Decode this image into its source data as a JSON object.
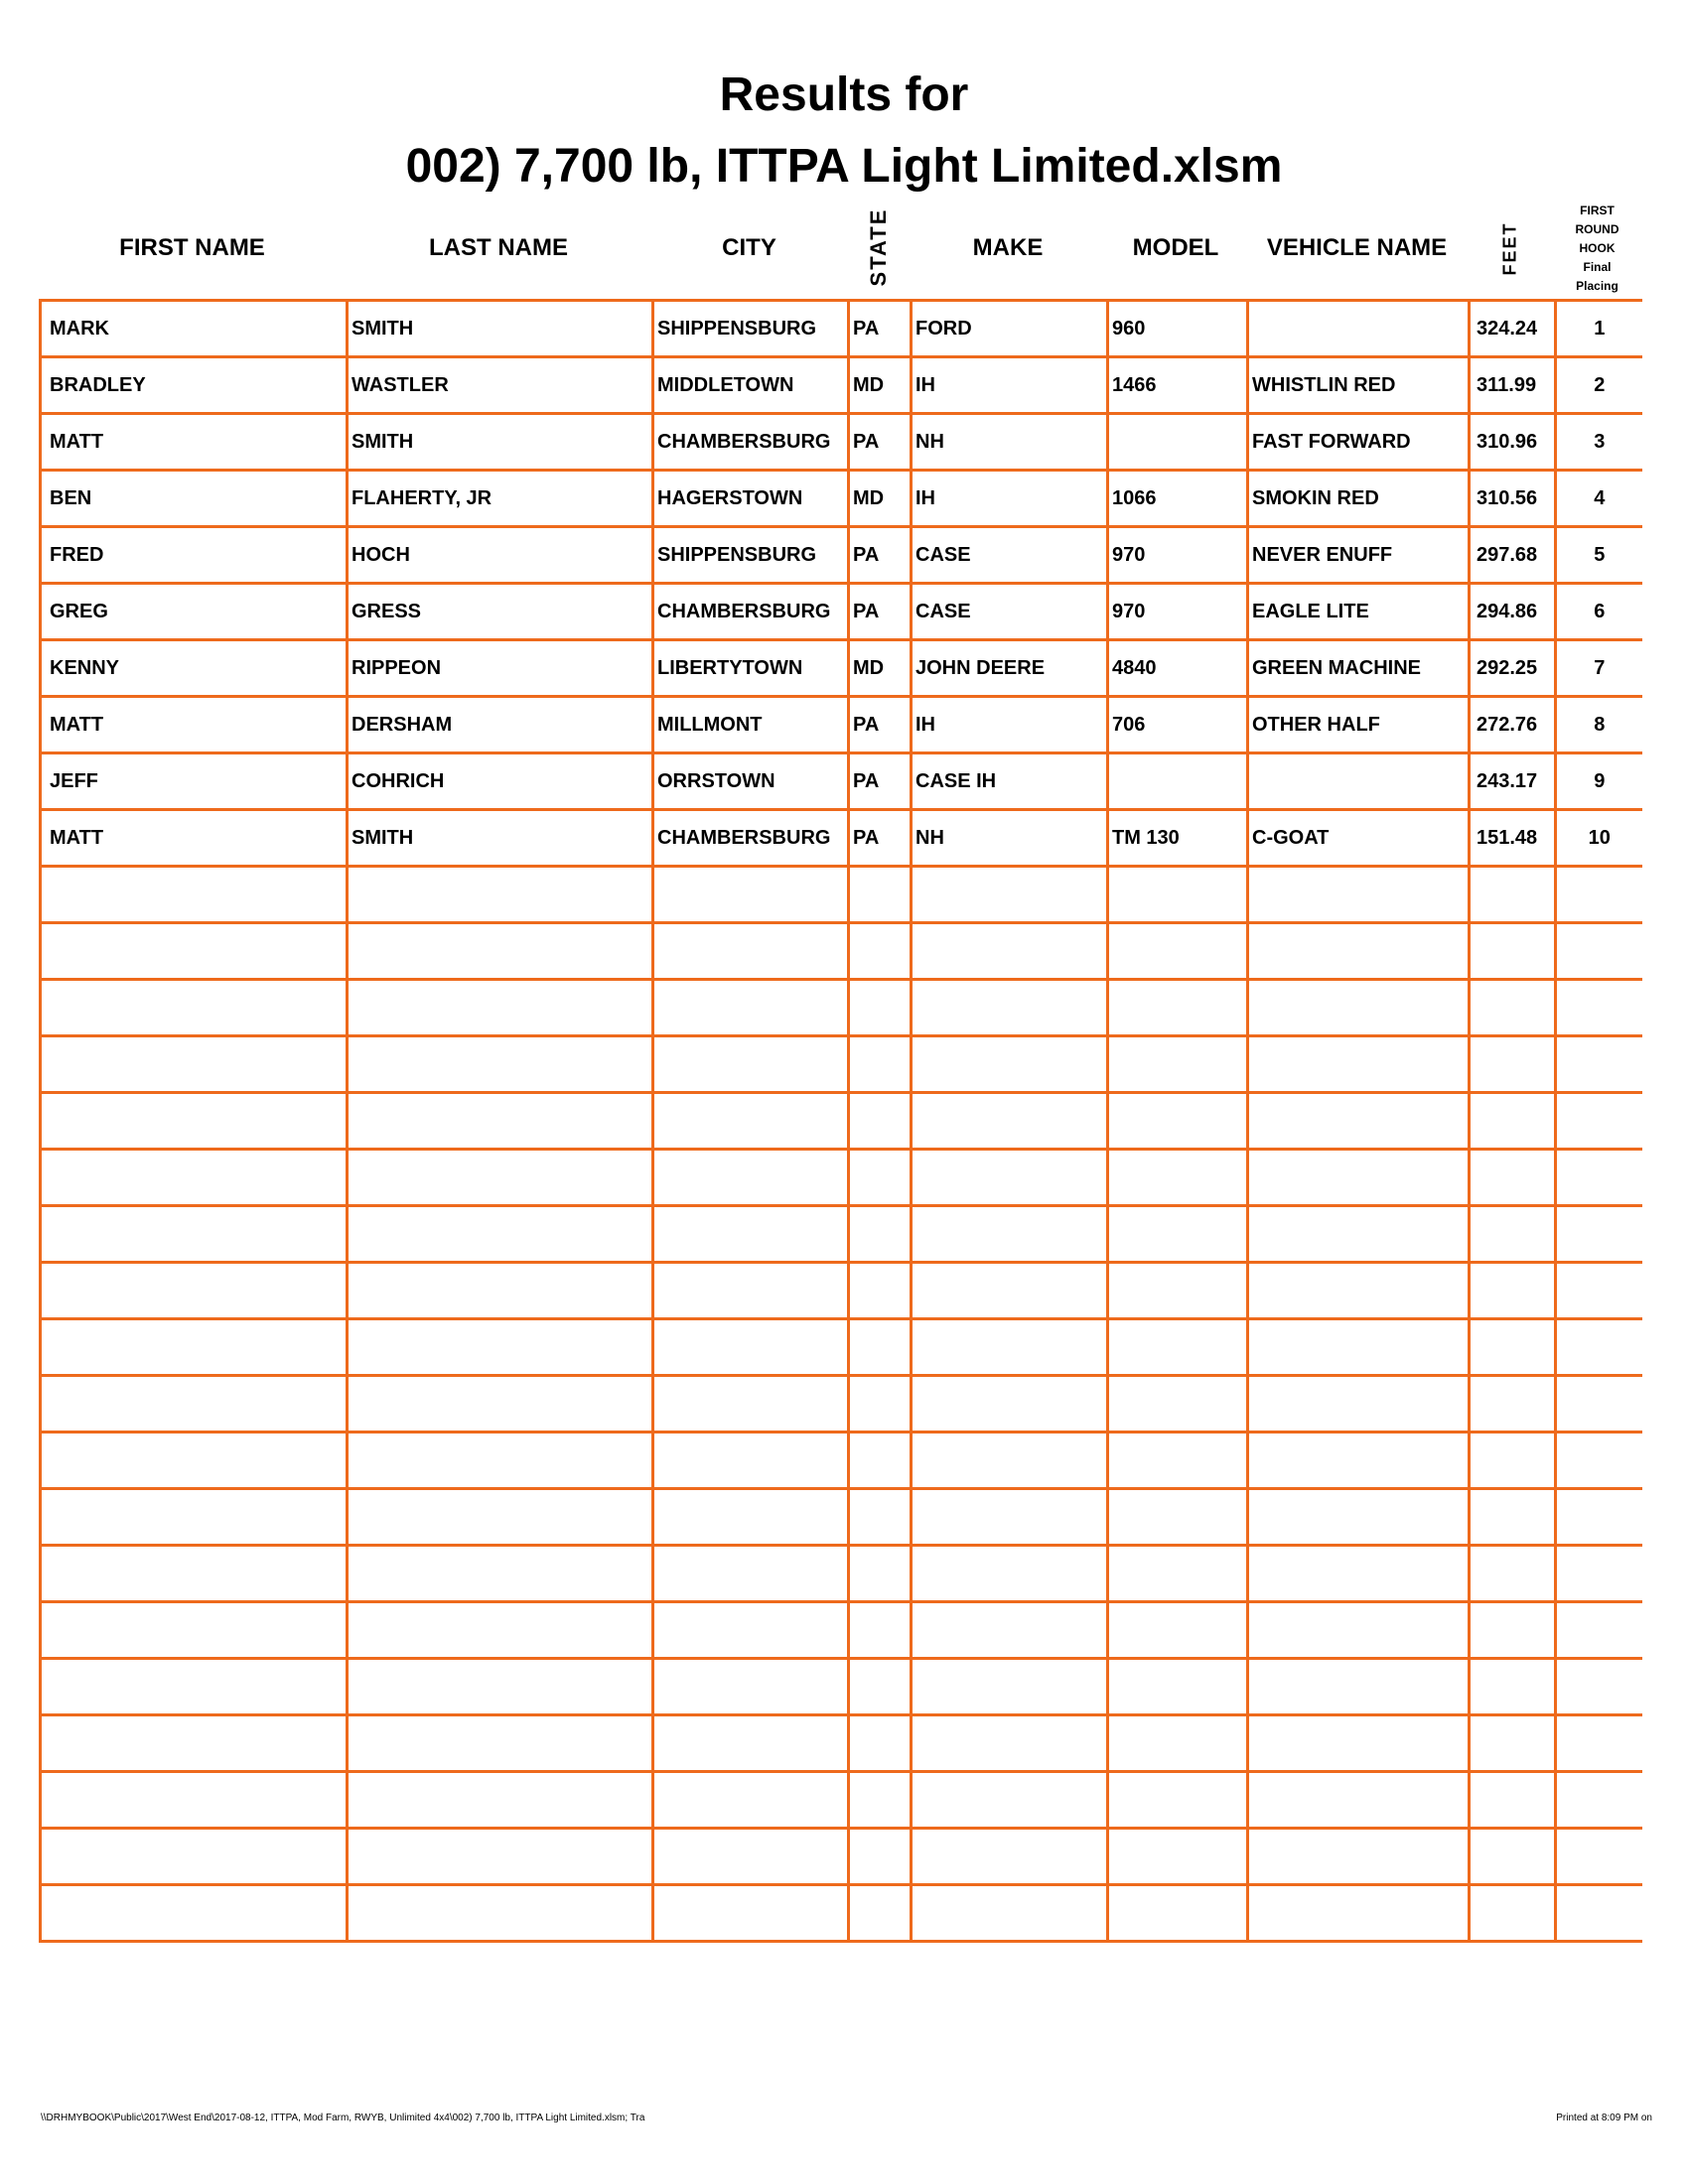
{
  "title": {
    "line1": "Results for",
    "line2": "002) 7,700 lb, ITTPA Light Limited.xlsm"
  },
  "headers": {
    "first": "FIRST NAME",
    "last": "LAST NAME",
    "city": "CITY",
    "state": "STATE",
    "make": "MAKE",
    "model": "MODEL",
    "vehicle": "VEHICLE NAME",
    "feet": "FEET",
    "placing": [
      "FIRST",
      "ROUND",
      "HOOK",
      "Final",
      "Placing"
    ]
  },
  "rows": [
    [
      "MARK",
      "SMITH",
      "SHIPPENSBURG",
      "PA",
      "FORD",
      "960",
      "",
      "324.24",
      "1"
    ],
    [
      "BRADLEY",
      "WASTLER",
      "MIDDLETOWN",
      "MD",
      "IH",
      "1466",
      "WHISTLIN RED",
      "311.99",
      "2"
    ],
    [
      "MATT",
      "SMITH",
      "CHAMBERSBURG",
      "PA",
      "NH",
      "",
      "FAST FORWARD",
      "310.96",
      "3"
    ],
    [
      "BEN",
      "FLAHERTY, JR",
      "HAGERSTOWN",
      "MD",
      "IH",
      "1066",
      "SMOKIN RED",
      "310.56",
      "4"
    ],
    [
      "FRED",
      "HOCH",
      "SHIPPENSBURG",
      "PA",
      "CASE",
      "970",
      "NEVER ENUFF",
      "297.68",
      "5"
    ],
    [
      "GREG",
      "GRESS",
      "CHAMBERSBURG",
      "PA",
      "CASE",
      "970",
      "EAGLE LITE",
      "294.86",
      "6"
    ],
    [
      "KENNY",
      "RIPPEON",
      "LIBERTYTOWN",
      "MD",
      "JOHN DEERE",
      "4840",
      "GREEN MACHINE",
      "292.25",
      "7"
    ],
    [
      "MATT",
      "DERSHAM",
      "MILLMONT",
      "PA",
      "IH",
      "706",
      "OTHER HALF",
      "272.76",
      "8"
    ],
    [
      "JEFF",
      "COHRICH",
      "ORRSTOWN",
      "PA",
      "CASE IH",
      "",
      "",
      "243.17",
      "9"
    ],
    [
      "MATT",
      "SMITH",
      "CHAMBERSBURG",
      "PA",
      "NH",
      "TM 130",
      "C-GOAT",
      "151.48",
      "10"
    ]
  ],
  "footer": {
    "path": "\\\\DRHMYBOOK\\Public\\2017\\West End\\2017-08-12, ITTPA, Mod Farm, RWYB, Unlimited 4x4\\002) 7,700 lb, ITTPA Light Limited.xlsm;  Tra",
    "printed": "Printed at 8:09 PM on"
  },
  "colors": {
    "grid": "#ee6a1c"
  }
}
